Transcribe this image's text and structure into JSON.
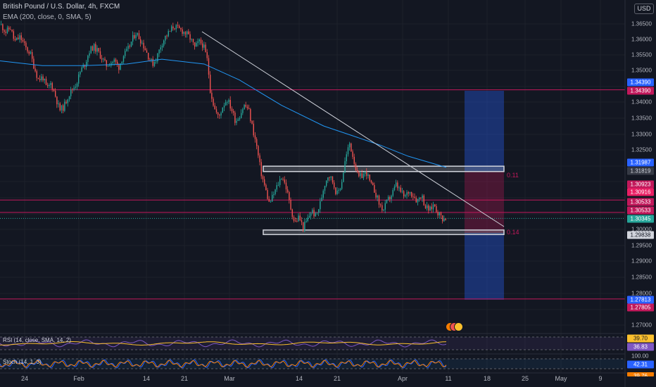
{
  "header": {
    "symbol_line": "British Pound / U.S. Dollar, 4h, FXCM",
    "indicator_line": "EMA (200, close, 0, SMA, 5)"
  },
  "currency_button": "USD",
  "price_axis": {
    "ticks": [
      "1.36500",
      "1.36000",
      "1.35500",
      "1.35000",
      "1.34000",
      "1.33500",
      "1.33000",
      "1.32500",
      "1.30000",
      "1.29500",
      "1.29000",
      "1.28500",
      "1.28000",
      "1.27000"
    ]
  },
  "price_tags": [
    {
      "value": "1.34390",
      "color": "#2962ff"
    },
    {
      "value": "1.34390",
      "color": "#c2185b"
    },
    {
      "value": "1.31987",
      "color": "#2962ff"
    },
    {
      "value": "1.31819",
      "color": "#363a45"
    },
    {
      "value": "1.30923",
      "color": "#c2185b"
    },
    {
      "value": "1.30916",
      "color": "#e91e63"
    },
    {
      "value": "1.30533",
      "color": "#c2185b"
    },
    {
      "value": "1.30533",
      "color": "#c2185b"
    },
    {
      "value": "1.30345",
      "color": "#26a69a"
    },
    {
      "value": "1.29838",
      "color": "#d1d4dc"
    },
    {
      "value": "1.27813",
      "color": "#2962ff"
    },
    {
      "value": "1.27805",
      "color": "#c2185b"
    }
  ],
  "time_axis": {
    "labels": [
      "24",
      "Feb",
      "14",
      "21",
      "Mar",
      "14",
      "21",
      "Apr",
      "11",
      "18",
      "25",
      "May",
      "9"
    ]
  },
  "fib_labels": [
    "0.11",
    "0.14"
  ],
  "rsi_pane": {
    "label": "RSI (14, close, SMA, 14, 2)",
    "values": [
      "39.70",
      "36.83"
    ]
  },
  "stoch_pane": {
    "label": "Stoch (14, 1, 3)",
    "axis_value": "100.00",
    "values": [
      "42.31",
      "39.76"
    ]
  },
  "colors": {
    "background": "#131722",
    "up": "#26a69a",
    "down": "#ef5350",
    "ema": "#2196f3",
    "level_line": "#c2185b",
    "trendline": "#d1d4dc",
    "position_blue": "#2962ff",
    "position_red": "#c2185b"
  },
  "chart_data": {
    "type": "candlestick",
    "symbol": "British Pound / U.S. Dollar",
    "timeframe": "4h",
    "horizontal_levels": [
      1.3439,
      1.30923,
      1.30533,
      1.27813
    ],
    "zones": [
      [
        1.31819,
        1.31987
      ],
      [
        1.29838,
        1.2998
      ]
    ],
    "last_price": 1.30345,
    "ylim": [
      1.265,
      1.369
    ],
    "close_path": [
      [
        0,
        1.3645
      ],
      [
        8,
        1.362
      ],
      [
        14,
        1.3635
      ],
      [
        20,
        1.359
      ],
      [
        28,
        1.3605
      ],
      [
        36,
        1.357
      ],
      [
        42,
        1.3555
      ],
      [
        48,
        1.351
      ],
      [
        54,
        1.347
      ],
      [
        60,
        1.348
      ],
      [
        66,
        1.344
      ],
      [
        72,
        1.346
      ],
      [
        78,
        1.342
      ],
      [
        84,
        1.3375
      ],
      [
        90,
        1.3385
      ],
      [
        96,
        1.342
      ],
      [
        102,
        1.344
      ],
      [
        108,
        1.346
      ],
      [
        114,
        1.35
      ],
      [
        120,
        1.352
      ],
      [
        126,
        1.356
      ],
      [
        132,
        1.3575
      ],
      [
        138,
        1.356
      ],
      [
        144,
        1.354
      ],
      [
        150,
        1.3515
      ],
      [
        156,
        1.3525
      ],
      [
        162,
        1.353
      ],
      [
        168,
        1.351
      ],
      [
        174,
        1.3545
      ],
      [
        180,
        1.356
      ],
      [
        186,
        1.359
      ],
      [
        192,
        1.362
      ],
      [
        198,
        1.36
      ],
      [
        204,
        1.3575
      ],
      [
        210,
        1.3545
      ],
      [
        216,
        1.352
      ],
      [
        222,
        1.354
      ],
      [
        228,
        1.358
      ],
      [
        234,
        1.3605
      ],
      [
        240,
        1.362
      ],
      [
        246,
        1.364
      ],
      [
        252,
        1.363
      ],
      [
        258,
        1.3625
      ],
      [
        264,
        1.3615
      ],
      [
        270,
        1.36
      ],
      [
        276,
        1.357
      ],
      [
        282,
        1.359
      ],
      [
        288,
        1.358
      ],
      [
        294,
        1.353
      ],
      [
        298,
        1.344
      ],
      [
        304,
        1.338
      ],
      [
        310,
        1.335
      ],
      [
        316,
        1.339
      ],
      [
        322,
        1.341
      ],
      [
        328,
        1.338
      ],
      [
        334,
        1.334
      ],
      [
        340,
        1.336
      ],
      [
        346,
        1.339
      ],
      [
        352,
        1.338
      ],
      [
        358,
        1.332
      ],
      [
        364,
        1.326
      ],
      [
        370,
        1.318
      ],
      [
        376,
        1.313
      ],
      [
        382,
        1.308
      ],
      [
        388,
        1.311
      ],
      [
        394,
        1.314
      ],
      [
        400,
        1.317
      ],
      [
        406,
        1.313
      ],
      [
        412,
        1.307
      ],
      [
        418,
        1.302
      ],
      [
        424,
        1.304
      ],
      [
        430,
        1.3005
      ],
      [
        436,
        1.303
      ],
      [
        442,
        1.306
      ],
      [
        448,
        1.304
      ],
      [
        454,
        1.308
      ],
      [
        460,
        1.314
      ],
      [
        466,
        1.3175
      ],
      [
        472,
        1.315
      ],
      [
        478,
        1.311
      ],
      [
        484,
        1.314
      ],
      [
        490,
        1.322
      ],
      [
        496,
        1.327
      ],
      [
        502,
        1.322
      ],
      [
        508,
        1.316
      ],
      [
        514,
        1.317
      ],
      [
        520,
        1.318
      ],
      [
        526,
        1.314
      ],
      [
        532,
        1.312
      ],
      [
        538,
        1.308
      ],
      [
        544,
        1.306
      ],
      [
        550,
        1.309
      ],
      [
        556,
        1.311
      ],
      [
        562,
        1.314
      ],
      [
        568,
        1.312
      ],
      [
        574,
        1.31
      ],
      [
        580,
        1.312
      ],
      [
        586,
        1.311
      ],
      [
        592,
        1.309
      ],
      [
        598,
        1.311
      ],
      [
        604,
        1.307
      ],
      [
        610,
        1.306
      ],
      [
        616,
        1.308
      ],
      [
        622,
        1.305
      ],
      [
        628,
        1.3035
      ],
      [
        633,
        1.30345
      ]
    ],
    "ema_200": [
      [
        0,
        1.353
      ],
      [
        60,
        1.3515
      ],
      [
        120,
        1.3515
      ],
      [
        180,
        1.352
      ],
      [
        230,
        1.3535
      ],
      [
        290,
        1.352
      ],
      [
        340,
        1.347
      ],
      [
        400,
        1.339
      ],
      [
        460,
        1.3325
      ],
      [
        500,
        1.3295
      ],
      [
        540,
        1.3265
      ],
      [
        580,
        1.323
      ],
      [
        634,
        1.3195
      ]
    ]
  }
}
